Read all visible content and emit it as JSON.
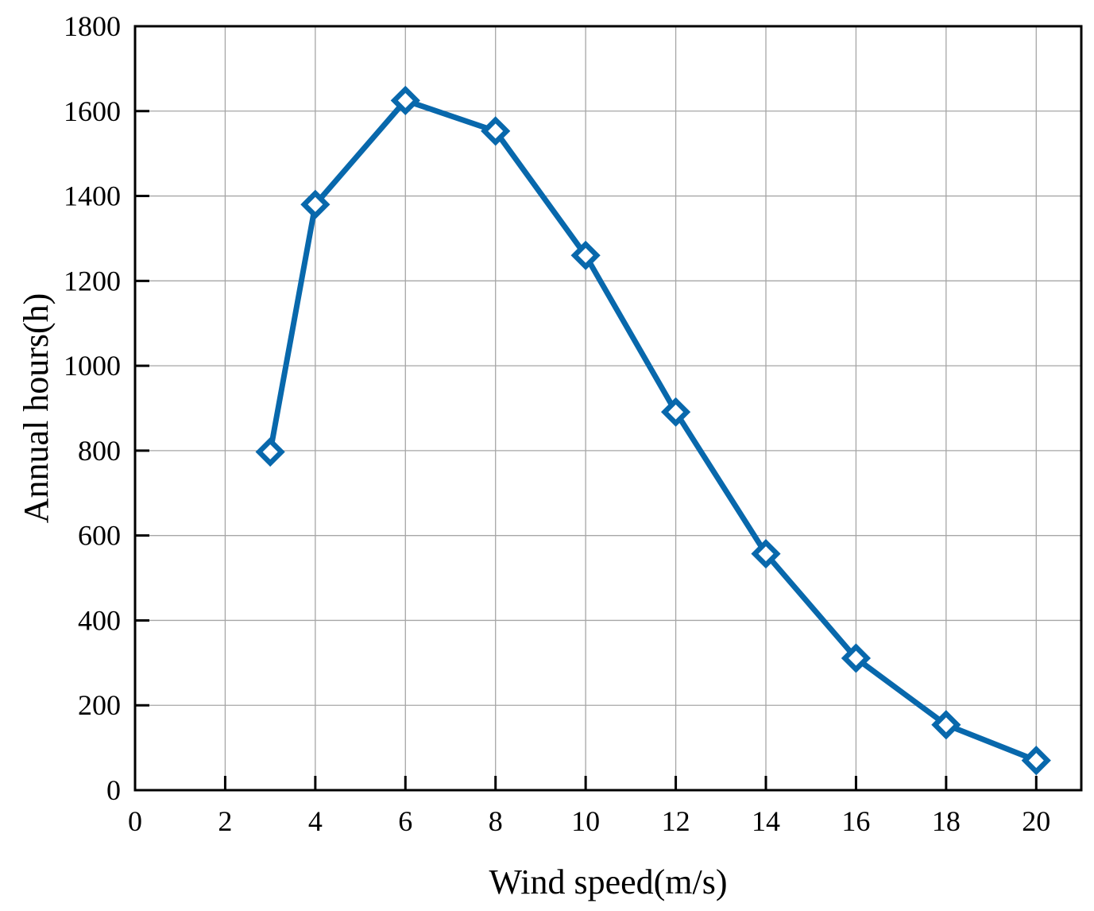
{
  "chart_data": {
    "type": "line",
    "xlabel": "Wind speed(m/s)",
    "ylabel": "Annual hours(h)",
    "xlim": [
      0,
      21
    ],
    "ylim": [
      0,
      1800
    ],
    "x_ticks": [
      0,
      2,
      4,
      6,
      8,
      10,
      12,
      14,
      16,
      18,
      20
    ],
    "y_ticks": [
      0,
      200,
      400,
      600,
      800,
      1000,
      1200,
      1400,
      1600,
      1800
    ],
    "x_tick_labels": [
      "0",
      "2",
      "4",
      "6",
      "8",
      "10",
      "12",
      "14",
      "16",
      "18",
      "20"
    ],
    "y_tick_labels": [
      "0",
      "200",
      "400",
      "600",
      "800",
      "1000",
      "1200",
      "1400",
      "1600",
      "1800"
    ],
    "grid": true,
    "legend": "none",
    "series": [
      {
        "x": [
          3,
          4,
          6,
          8,
          10,
          12,
          14,
          16,
          18,
          20
        ],
        "values": [
          797,
          1380,
          1625,
          1553,
          1260,
          891,
          557,
          311,
          154,
          70
        ],
        "color": "#0868ac",
        "marker": "diamond-open"
      }
    ]
  }
}
